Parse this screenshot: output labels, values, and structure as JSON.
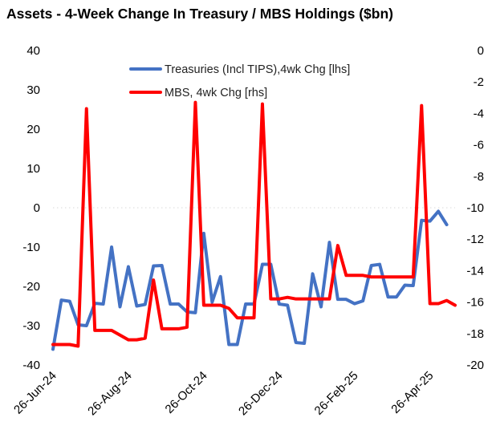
{
  "chart_data": {
    "type": "line",
    "title": "Assets - 4-Week Change In Treasury / MBS Holdings ($bn)",
    "xlabel": "",
    "ylabel_left": "",
    "ylabel_right": "",
    "x_tick_labels": [
      "26-Jun-24",
      "26-Aug-24",
      "26-Oct-24",
      "26-Dec-24",
      "26-Feb-25",
      "26-Apr-25"
    ],
    "x_tick_indices": [
      0,
      9,
      18,
      27,
      36,
      45
    ],
    "y_left": {
      "min": -40,
      "max": 40,
      "step": 10,
      "ticks": [
        "40",
        "30",
        "20",
        "10",
        "0",
        "-10",
        "-20",
        "-30",
        "-40"
      ]
    },
    "y_right": {
      "min": -20,
      "max": 0,
      "step": 2,
      "ticks": [
        "0",
        "-2",
        "-4",
        "-6",
        "-8",
        "-10",
        "-12",
        "-14",
        "-16",
        "-18",
        "-20"
      ]
    },
    "legend_position": "top-center",
    "series": [
      {
        "name": "Treasuries (Incl TIPS),4wk Chg [lhs]",
        "axis": "left",
        "color": "#4472C4",
        "values": [
          -36,
          -23.5,
          -23.8,
          -29.8,
          -30,
          -24.3,
          -24.5,
          -10,
          -25.2,
          -15,
          -25,
          -24.6,
          -14.8,
          -14.7,
          -24.5,
          -24.5,
          -26.5,
          -26.7,
          -6.5,
          -24,
          -17.5,
          -34.8,
          -34.8,
          -24.5,
          -24.5,
          -14.4,
          -14.4,
          -24.5,
          -24.8,
          -34.3,
          -34.5,
          -16.8,
          -25.2,
          -8.8,
          -23.3,
          -23.3,
          -24.4,
          -23.7,
          -14.7,
          -14.4,
          -22.7,
          -22.7,
          -19.7,
          -19.8,
          -3.2,
          -3.4,
          -0.9,
          -4.3
        ]
      },
      {
        "name": "MBS, 4wk Chg [rhs]",
        "axis": "right",
        "color": "#FF0000",
        "values": [
          -18.7,
          -18.7,
          -18.7,
          -18.8,
          -3.7,
          -17.8,
          -17.8,
          -17.8,
          -18.1,
          -18.4,
          -18.4,
          -18.3,
          -14.6,
          -17.7,
          -17.7,
          -17.7,
          -17.6,
          -3.3,
          -16.2,
          -16.2,
          -16.2,
          -16.4,
          -17.0,
          -17.0,
          -17.0,
          -3.4,
          -15.8,
          -15.8,
          -15.7,
          -15.8,
          -15.8,
          -15.8,
          -15.8,
          -15.8,
          -12.4,
          -14.3,
          -14.3,
          -14.3,
          -14.4,
          -14.4,
          -14.4,
          -14.4,
          -14.4,
          -14.4,
          -3.5,
          -16.1,
          -16.1,
          -15.9,
          -16.2
        ]
      }
    ]
  }
}
